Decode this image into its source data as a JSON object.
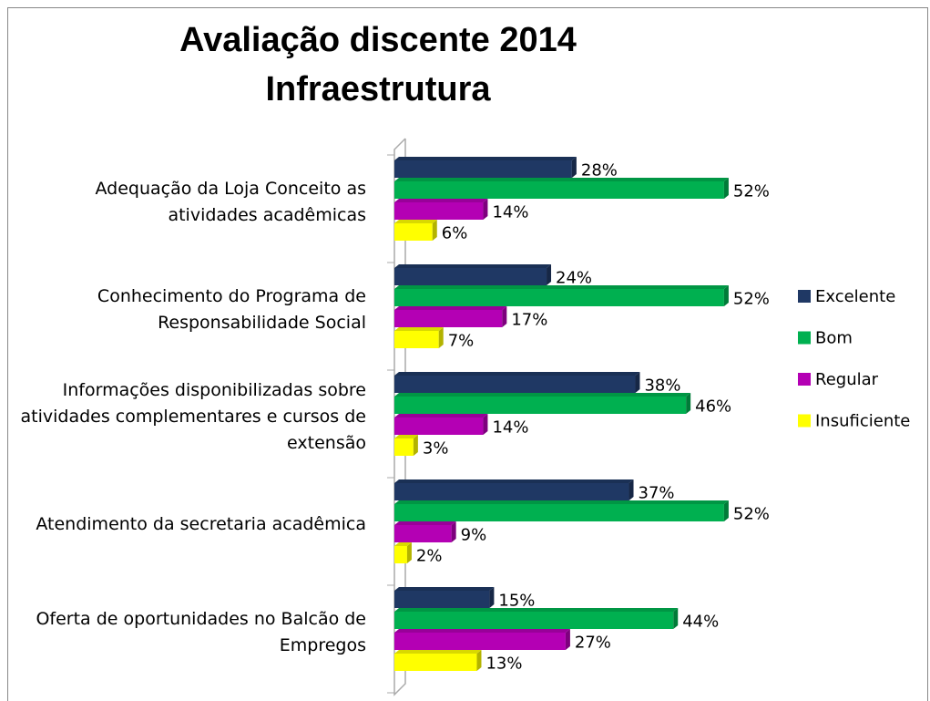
{
  "chart_data": {
    "type": "bar",
    "orientation": "horizontal",
    "title": "Avaliação discente 2014",
    "subtitle": "Infraestrutura",
    "categories": [
      "Adequação da Loja Conceito as atividades acadêmicas",
      "Conhecimento do Programa de Responsabilidade Social",
      "Informações disponibilizadas sobre atividades complementares e cursos de extensão",
      "Atendimento da secretaria acadêmica",
      "Oferta de oportunidades no Balcão de Empregos"
    ],
    "series": [
      {
        "name": "Excelente",
        "color": "#1f3864",
        "values": [
          28,
          24,
          38,
          37,
          15
        ],
        "value_labels": [
          "28%",
          "24%",
          "38%",
          "37%",
          "15%"
        ]
      },
      {
        "name": "Bom",
        "color": "#00b050",
        "values": [
          52,
          52,
          46,
          52,
          44
        ],
        "value_labels": [
          "52%",
          "52%",
          "46%",
          "52%",
          "44%"
        ]
      },
      {
        "name": "Regular",
        "color": "#b400b4",
        "values": [
          14,
          17,
          14,
          9,
          27
        ],
        "value_labels": [
          "14%",
          "17%",
          "14%",
          "9%",
          "27%"
        ]
      },
      {
        "name": "Insuficiente",
        "color": "#ffff00",
        "values": [
          6,
          7,
          3,
          2,
          13
        ],
        "value_labels": [
          "6%",
          "7%",
          "3%",
          "2%",
          "13%"
        ]
      }
    ],
    "legend": "right"
  }
}
